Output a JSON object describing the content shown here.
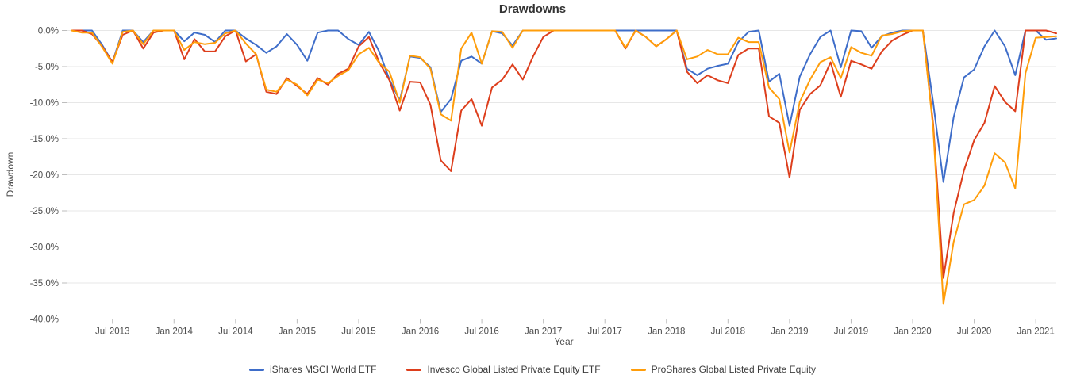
{
  "chart": {
    "title": "Drawdowns",
    "x_axis_title": "Year",
    "y_axis_title": "Drawdown",
    "y_tick_labels": [
      "0.0%",
      "-5.0%",
      "-10.0%",
      "-15.0%",
      "-20.0%",
      "-25.0%",
      "-30.0%",
      "-35.0%",
      "-40.0%"
    ],
    "x_tick_labels": [
      "Jul 2013",
      "Jan 2014",
      "Jul 2014",
      "Jan 2015",
      "Jul 2015",
      "Jan 2016",
      "Jul 2016",
      "Jan 2017",
      "Jul 2017",
      "Jan 2018",
      "Jul 2018",
      "Jan 2019",
      "Jul 2019",
      "Jan 2020",
      "Jul 2020",
      "Jan 2021"
    ],
    "colors": {
      "grid": "#e7e7e7",
      "tick": "#bdbdbd",
      "tick_label": "#4d4d4d",
      "title": "#333333"
    }
  },
  "chart_data": {
    "type": "line",
    "title": "Drawdowns",
    "xlabel": "Year",
    "ylabel": "Drawdown",
    "ylim": [
      -40,
      0
    ],
    "y_tick_step": 5,
    "grid": true,
    "legend_position": "bottom",
    "x_unit": "month",
    "x": [
      "2013-03",
      "2013-04",
      "2013-05",
      "2013-06",
      "2013-07",
      "2013-08",
      "2013-09",
      "2013-10",
      "2013-11",
      "2013-12",
      "2014-01",
      "2014-02",
      "2014-03",
      "2014-04",
      "2014-05",
      "2014-06",
      "2014-07",
      "2014-08",
      "2014-09",
      "2014-10",
      "2014-11",
      "2014-12",
      "2015-01",
      "2015-02",
      "2015-03",
      "2015-04",
      "2015-05",
      "2015-06",
      "2015-07",
      "2015-08",
      "2015-09",
      "2015-10",
      "2015-11",
      "2015-12",
      "2016-01",
      "2016-02",
      "2016-03",
      "2016-04",
      "2016-05",
      "2016-06",
      "2016-07",
      "2016-08",
      "2016-09",
      "2016-10",
      "2016-11",
      "2016-12",
      "2017-01",
      "2017-02",
      "2017-03",
      "2017-04",
      "2017-05",
      "2017-06",
      "2017-07",
      "2017-08",
      "2017-09",
      "2017-10",
      "2017-11",
      "2017-12",
      "2018-01",
      "2018-02",
      "2018-03",
      "2018-04",
      "2018-05",
      "2018-06",
      "2018-07",
      "2018-08",
      "2018-09",
      "2018-10",
      "2018-11",
      "2018-12",
      "2019-01",
      "2019-02",
      "2019-03",
      "2019-04",
      "2019-05",
      "2019-06",
      "2019-07",
      "2019-08",
      "2019-09",
      "2019-10",
      "2019-11",
      "2019-12",
      "2020-01",
      "2020-02",
      "2020-03",
      "2020-04",
      "2020-05",
      "2020-06",
      "2020-07",
      "2020-08",
      "2020-09",
      "2020-10",
      "2020-11",
      "2020-12",
      "2021-01",
      "2021-02",
      "2021-03"
    ],
    "x_tick_indices": [
      4,
      10,
      16,
      22,
      28,
      34,
      40,
      46,
      52,
      58,
      64,
      70,
      76,
      82,
      88,
      94
    ],
    "x_tick_labels": [
      "Jul 2013",
      "Jan 2014",
      "Jul 2014",
      "Jan 2015",
      "Jul 2015",
      "Jan 2016",
      "Jul 2016",
      "Jan 2017",
      "Jul 2017",
      "Jan 2018",
      "Jul 2018",
      "Jan 2019",
      "Jul 2019",
      "Jan 2020",
      "Jul 2020",
      "Jan 2021"
    ],
    "series": [
      {
        "name": "iShares MSCI World ETF",
        "color": "#3e6dc9",
        "values": [
          0,
          0,
          0,
          -2,
          -4.4,
          0,
          0,
          -1.6,
          0,
          0,
          0,
          -1.5,
          -0.3,
          -0.6,
          -1.6,
          0,
          0,
          -1.1,
          -2,
          -3.1,
          -2.2,
          -0.5,
          -2,
          -4.2,
          -0.3,
          0,
          0,
          -1.2,
          -2,
          -0.2,
          -2.9,
          -6.8,
          -9.7,
          -3.6,
          -3.8,
          -5.1,
          -11.3,
          -9.5,
          -4.2,
          -3.6,
          -4.6,
          -0.1,
          -0.4,
          -2.1,
          0,
          0,
          0,
          0,
          0,
          0,
          0,
          0,
          0,
          0,
          0,
          0,
          0,
          0,
          0,
          0,
          -5.3,
          -6.2,
          -5.3,
          -4.9,
          -4.6,
          -1.6,
          -0.2,
          0,
          -7.1,
          -6,
          -13.2,
          -6.4,
          -3.3,
          -0.9,
          0,
          -5.1,
          0,
          -0.1,
          -2.4,
          -0.8,
          -0.3,
          0,
          0,
          0,
          -10,
          -21,
          -12,
          -6.5,
          -5.4,
          -2.2,
          0,
          -2.2,
          -6.2,
          0,
          0,
          -1.3,
          -1.1
        ]
      },
      {
        "name": "Invesco Global Listed Private Equity ETF",
        "color": "#dd3e1c",
        "values": [
          0,
          0,
          -0.5,
          -2.2,
          -4.4,
          -0.6,
          0,
          -2.5,
          -0.3,
          0,
          0,
          -4,
          -1.2,
          -2.9,
          -2.9,
          -0.8,
          0,
          -4.3,
          -3.3,
          -8.5,
          -8.8,
          -6.6,
          -7.7,
          -8.8,
          -6.6,
          -7.5,
          -6,
          -5.3,
          -2.2,
          -0.9,
          -4.4,
          -6.9,
          -11.1,
          -7.1,
          -7.2,
          -10.3,
          -18,
          -19.5,
          -11.1,
          -9.5,
          -13.2,
          -7.9,
          -6.8,
          -4.7,
          -6.8,
          -3.6,
          -0.9,
          0,
          0,
          0,
          0,
          0,
          0,
          0,
          -2.5,
          0,
          -0.9,
          -2.2,
          -1.2,
          0,
          -5.7,
          -7.3,
          -6.2,
          -6.9,
          -7.3,
          -3.4,
          -2.5,
          -2.5,
          -11.9,
          -12.8,
          -20.4,
          -11,
          -8.8,
          -7.6,
          -4.4,
          -9.2,
          -4.2,
          -4.7,
          -5.3,
          -2.9,
          -1.4,
          -0.6,
          0,
          0,
          -13,
          -34.3,
          -25.3,
          -19.4,
          -15.2,
          -12.8,
          -7.7,
          -9.9,
          -11.2,
          0,
          0,
          0,
          -0.4
        ]
      },
      {
        "name": "ProShares Global Listed Private Equity",
        "color": "#ff9d0a",
        "values": [
          0,
          -0.3,
          -0.3,
          -2.3,
          -4.6,
          -0.2,
          0,
          -1.9,
          0,
          0,
          0,
          -2.7,
          -1.6,
          -1.9,
          -1.7,
          -0.4,
          0,
          -1.8,
          -3.3,
          -8.2,
          -8.5,
          -6.8,
          -7.5,
          -9,
          -6.8,
          -7.3,
          -6.3,
          -5.5,
          -3.3,
          -2.4,
          -4.5,
          -5.7,
          -10,
          -3.5,
          -3.7,
          -5.3,
          -11.6,
          -12.5,
          -2.5,
          -0.3,
          -4.6,
          -0.1,
          -0.2,
          -2.4,
          0,
          0,
          0,
          0,
          0,
          0,
          0,
          0,
          0,
          0,
          -2.4,
          0,
          -0.9,
          -2.2,
          -1.2,
          0,
          -4,
          -3.6,
          -2.7,
          -3.3,
          -3.3,
          -1,
          -1.6,
          -1.6,
          -7.9,
          -9.5,
          -16.9,
          -9.9,
          -6.8,
          -4.4,
          -3.7,
          -6.6,
          -2.3,
          -3.1,
          -3.5,
          -0.7,
          -0.5,
          -0.1,
          0,
          0,
          -13.5,
          -37.9,
          -29.3,
          -24.1,
          -23.5,
          -21.5,
          -17,
          -18.3,
          -21.9,
          -5.9,
          -1,
          -0.9,
          -0.8
        ]
      }
    ]
  }
}
